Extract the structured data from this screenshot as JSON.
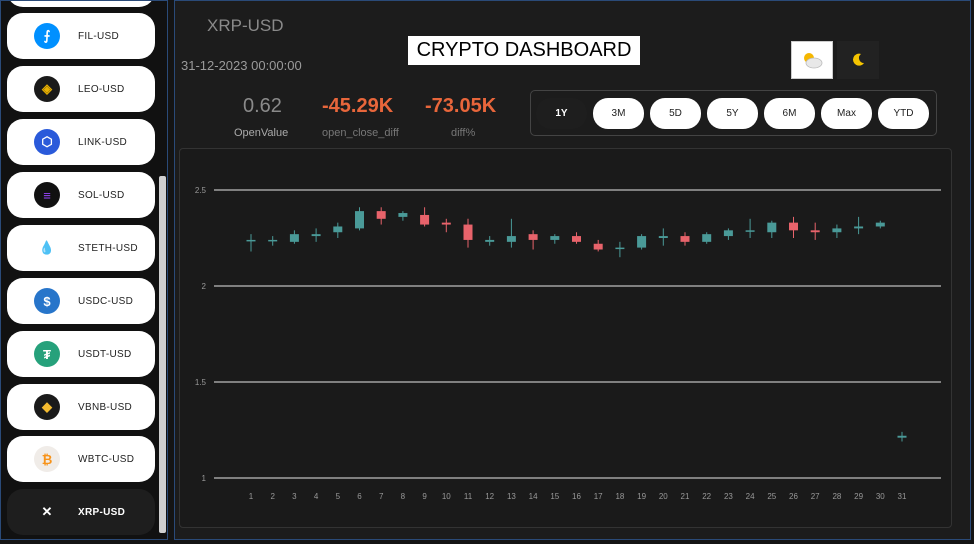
{
  "sidebar": {
    "items": [
      {
        "label": "FIL-USD",
        "icon": "filecoin-icon",
        "color": "#0090ff",
        "glyph": "⨍",
        "fg": "#fff"
      },
      {
        "label": "LEO-USD",
        "icon": "leo-icon",
        "color": "#1a1a1a",
        "glyph": "◈",
        "fg": "#e8b000"
      },
      {
        "label": "LINK-USD",
        "icon": "chainlink-icon",
        "color": "#2a5ada",
        "glyph": "⬡",
        "fg": "#fff"
      },
      {
        "label": "SOL-USD",
        "icon": "solana-icon",
        "color": "#111",
        "glyph": "≡",
        "fg": "#9945ff"
      },
      {
        "label": "STETH-USD",
        "icon": "steth-icon",
        "color": "#fff",
        "glyph": "💧",
        "fg": "#00a3ff"
      },
      {
        "label": "USDC-USD",
        "icon": "usdc-icon",
        "color": "#2775ca",
        "glyph": "$",
        "fg": "#fff"
      },
      {
        "label": "USDT-USD",
        "icon": "tether-icon",
        "color": "#26a17b",
        "glyph": "₮",
        "fg": "#fff"
      },
      {
        "label": "VBNB-USD",
        "icon": "vbnb-icon",
        "color": "#1a1a1a",
        "glyph": "◆",
        "fg": "#f3ba2f"
      },
      {
        "label": "WBTC-USD",
        "icon": "wbtc-icon",
        "color": "#f0ece8",
        "glyph": "₿",
        "fg": "#f7931a"
      },
      {
        "label": "XRP-USD",
        "icon": "xrp-icon",
        "color": "#1e1e1e",
        "glyph": "✕",
        "fg": "#fff"
      }
    ]
  },
  "header": {
    "pair": "XRP-USD",
    "date": "31-12-2023 00:00:00",
    "title": "CRYPTO DASHBOARD",
    "light_icon": "sun-cloud-icon",
    "dark_icon": "moon-icon"
  },
  "stats": {
    "open_value": "0.62",
    "open_label": "OpenValue",
    "diff": "-45.29K",
    "diff_label": "open_close_diff",
    "pct": "-73.05K",
    "pct_label": "diff%"
  },
  "ranges": [
    "1Y",
    "3M",
    "5D",
    "5Y",
    "6M",
    "Max",
    "YTD"
  ],
  "colors": {
    "up": "#4a9a98",
    "down": "#e8636b",
    "accent": "#e8663b"
  },
  "chart_data": {
    "type": "candlestick",
    "x": [
      1,
      2,
      3,
      4,
      5,
      6,
      7,
      8,
      9,
      10,
      11,
      12,
      13,
      14,
      15,
      16,
      17,
      18,
      19,
      20,
      21,
      22,
      23,
      24,
      25,
      26,
      27,
      28,
      29,
      30,
      31
    ],
    "ylim": [
      1,
      2.5
    ],
    "yticks": [
      "2.5",
      "2",
      "1.5",
      "1"
    ],
    "candles": [
      {
        "o": 2.24,
        "h": 2.27,
        "l": 2.18,
        "c": 2.24
      },
      {
        "o": 2.24,
        "h": 2.26,
        "l": 2.21,
        "c": 2.24
      },
      {
        "o": 2.23,
        "h": 2.29,
        "l": 2.22,
        "c": 2.27
      },
      {
        "o": 2.26,
        "h": 2.3,
        "l": 2.23,
        "c": 2.27
      },
      {
        "o": 2.28,
        "h": 2.33,
        "l": 2.25,
        "c": 2.31
      },
      {
        "o": 2.3,
        "h": 2.41,
        "l": 2.29,
        "c": 2.39
      },
      {
        "o": 2.39,
        "h": 2.41,
        "l": 2.32,
        "c": 2.35
      },
      {
        "o": 2.36,
        "h": 2.39,
        "l": 2.34,
        "c": 2.38
      },
      {
        "o": 2.37,
        "h": 2.41,
        "l": 2.31,
        "c": 2.32
      },
      {
        "o": 2.33,
        "h": 2.35,
        "l": 2.28,
        "c": 2.32
      },
      {
        "o": 2.32,
        "h": 2.35,
        "l": 2.2,
        "c": 2.24
      },
      {
        "o": 2.23,
        "h": 2.26,
        "l": 2.21,
        "c": 2.24
      },
      {
        "o": 2.23,
        "h": 2.35,
        "l": 2.2,
        "c": 2.26
      },
      {
        "o": 2.27,
        "h": 2.29,
        "l": 2.19,
        "c": 2.24
      },
      {
        "o": 2.24,
        "h": 2.27,
        "l": 2.22,
        "c": 2.26
      },
      {
        "o": 2.26,
        "h": 2.28,
        "l": 2.22,
        "c": 2.23
      },
      {
        "o": 2.22,
        "h": 2.24,
        "l": 2.18,
        "c": 2.19
      },
      {
        "o": 2.2,
        "h": 2.23,
        "l": 2.15,
        "c": 2.2
      },
      {
        "o": 2.2,
        "h": 2.27,
        "l": 2.19,
        "c": 2.26
      },
      {
        "o": 2.25,
        "h": 2.3,
        "l": 2.21,
        "c": 2.26
      },
      {
        "o": 2.26,
        "h": 2.28,
        "l": 2.21,
        "c": 2.23
      },
      {
        "o": 2.23,
        "h": 2.28,
        "l": 2.22,
        "c": 2.27
      },
      {
        "o": 2.26,
        "h": 2.3,
        "l": 2.24,
        "c": 2.29
      },
      {
        "o": 2.29,
        "h": 2.35,
        "l": 2.25,
        "c": 2.29
      },
      {
        "o": 2.28,
        "h": 2.34,
        "l": 2.25,
        "c": 2.33
      },
      {
        "o": 2.33,
        "h": 2.36,
        "l": 2.25,
        "c": 2.29
      },
      {
        "o": 2.29,
        "h": 2.33,
        "l": 2.24,
        "c": 2.28
      },
      {
        "o": 2.28,
        "h": 2.32,
        "l": 2.25,
        "c": 2.3
      },
      {
        "o": 2.3,
        "h": 2.36,
        "l": 2.27,
        "c": 2.31
      },
      {
        "o": 2.31,
        "h": 2.34,
        "l": 2.3,
        "c": 2.33
      },
      {
        "o": 1.21,
        "h": 1.24,
        "l": 1.19,
        "c": 1.22
      }
    ]
  }
}
